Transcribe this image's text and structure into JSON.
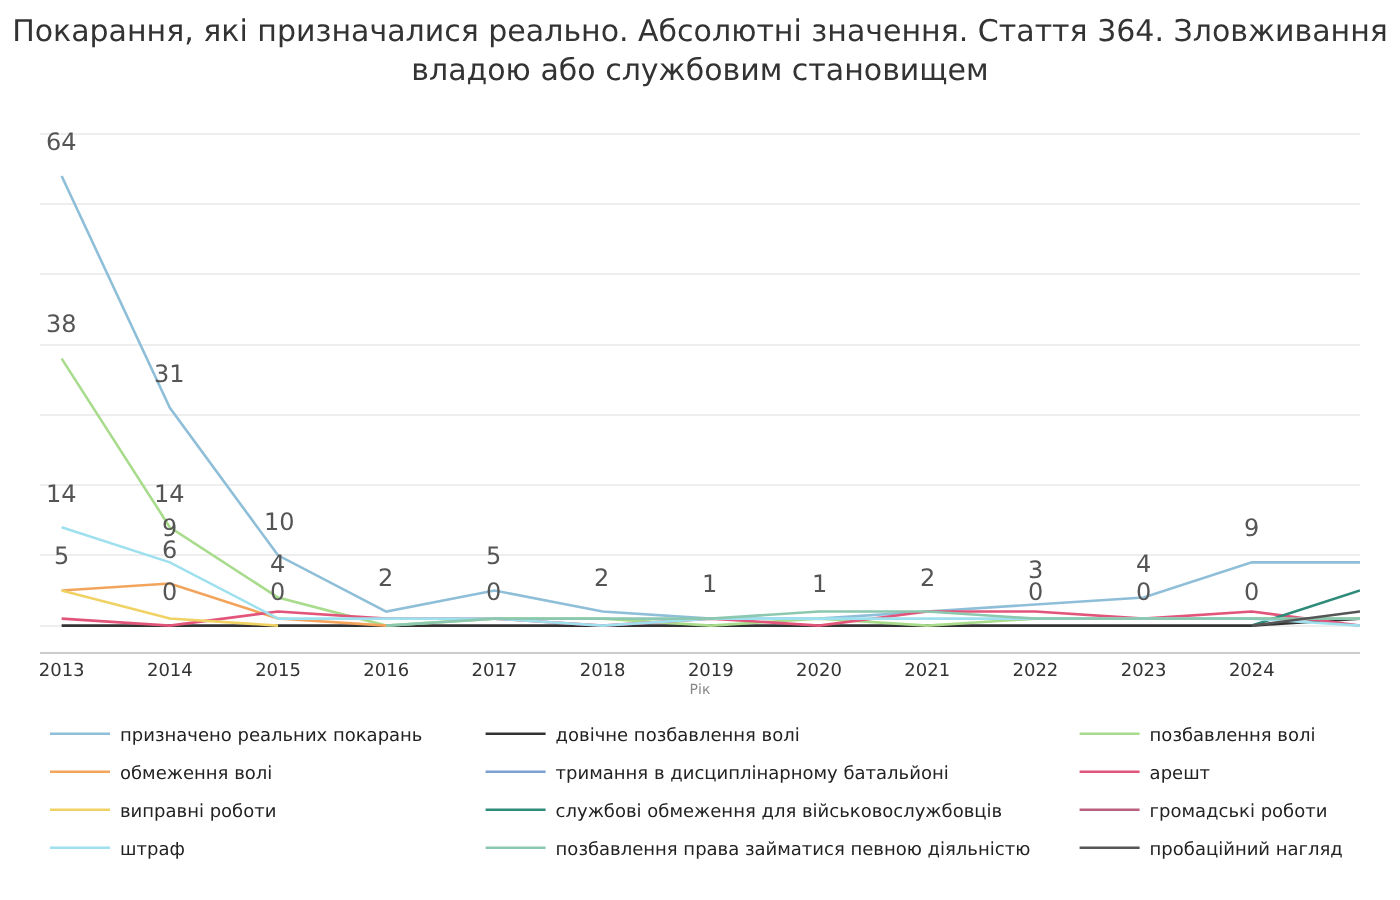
{
  "chart_data": {
    "type": "line",
    "title": "Покарання, які призначалися реально. Абсолютні значення. Стаття 364. Зловживання владою або службовим становищем",
    "xlabel": "Рік",
    "x": [
      2013,
      2014,
      2015,
      2016,
      2017,
      2018,
      2019,
      2020,
      2021,
      2022,
      2023,
      2024,
      2025
    ],
    "xlim": [
      2012.8,
      2025
    ],
    "xticks": [
      2013,
      2014,
      2015,
      2016,
      2017,
      2018,
      2019,
      2020,
      2021,
      2022,
      2023,
      2024
    ],
    "tick_labels": "x",
    "grid": "y",
    "legend": "bottom",
    "marker": "none",
    "line_style": "solid",
    "series": [
      {
        "name": "призначено реальних покарань",
        "color": "#8fbfd8",
        "values": [
          64,
          31,
          10,
          2,
          5,
          2,
          1,
          1,
          2,
          3,
          4,
          9,
          9
        ],
        "value_labels": [
          "64",
          "31",
          "10",
          "2",
          "5",
          "2",
          "1",
          "1",
          "2",
          "3",
          "4",
          "9",
          null
        ]
      },
      {
        "name": "довічне позбавлення волі",
        "color": "#333333",
        "values": [
          0,
          0,
          0,
          0,
          0,
          0,
          0,
          0,
          0,
          0,
          0,
          0,
          1
        ],
        "value_labels": [
          null,
          "0",
          "0",
          null,
          "0",
          null,
          null,
          null,
          null,
          "0",
          "0",
          "0",
          null
        ]
      },
      {
        "name": "позбавлення волі",
        "color": "#a8dc8c",
        "values": [
          38,
          14,
          4,
          0,
          1,
          1,
          0,
          1,
          0,
          1,
          1,
          1,
          1
        ],
        "value_labels": [
          "38",
          "14",
          "4",
          null,
          null,
          null,
          null,
          null,
          null,
          null,
          null,
          null,
          null
        ]
      },
      {
        "name": "обмеження волі",
        "color": "#f3a45c",
        "values": [
          5,
          6,
          1,
          0,
          null,
          null,
          null,
          null,
          null,
          null,
          null,
          null,
          null
        ],
        "value_labels": [
          "5",
          "6",
          null,
          null,
          null,
          null,
          null,
          null,
          null,
          null,
          null,
          null,
          null
        ]
      },
      {
        "name": "тримання в дисциплінарному батальйоні",
        "color": "#7d9fd2",
        "values": [
          null,
          null,
          null,
          null,
          null,
          null,
          null,
          null,
          null,
          null,
          null,
          null,
          null
        ]
      },
      {
        "name": "арешт",
        "color": "#e2557a",
        "values": [
          1,
          0,
          2,
          1,
          1,
          0,
          1,
          0,
          2,
          2,
          1,
          2,
          0
        ]
      },
      {
        "name": "виправні роботи",
        "color": "#f0d264",
        "values": [
          5,
          1,
          0,
          null,
          null,
          null,
          null,
          null,
          null,
          null,
          null,
          null,
          null
        ]
      },
      {
        "name": "службові обмеження для військовослужбовців",
        "color": "#2e8b7a",
        "values": [
          null,
          null,
          null,
          null,
          null,
          null,
          null,
          null,
          null,
          null,
          null,
          0,
          5
        ]
      },
      {
        "name": "громадські роботи",
        "color": "#b8607c",
        "values": [
          null,
          null,
          null,
          null,
          null,
          null,
          null,
          null,
          null,
          null,
          null,
          null,
          null
        ]
      },
      {
        "name": "штраф",
        "color": "#9fe0ef",
        "values": [
          14,
          9,
          1,
          1,
          1,
          0,
          1,
          1,
          1,
          1,
          1,
          1,
          0
        ],
        "value_labels": [
          "14",
          "9",
          null,
          null,
          null,
          null,
          null,
          null,
          null,
          null,
          null,
          null,
          null
        ]
      },
      {
        "name": "позбавлення права займатися певною діяльністю",
        "color": "#8cc8b0",
        "values": [
          null,
          null,
          null,
          0,
          1,
          1,
          1,
          2,
          2,
          1,
          1,
          1,
          1
        ]
      },
      {
        "name": "пробаційний нагляд",
        "color": "#555555",
        "values": [
          null,
          null,
          null,
          null,
          null,
          null,
          null,
          null,
          null,
          null,
          null,
          0,
          2
        ]
      }
    ]
  }
}
